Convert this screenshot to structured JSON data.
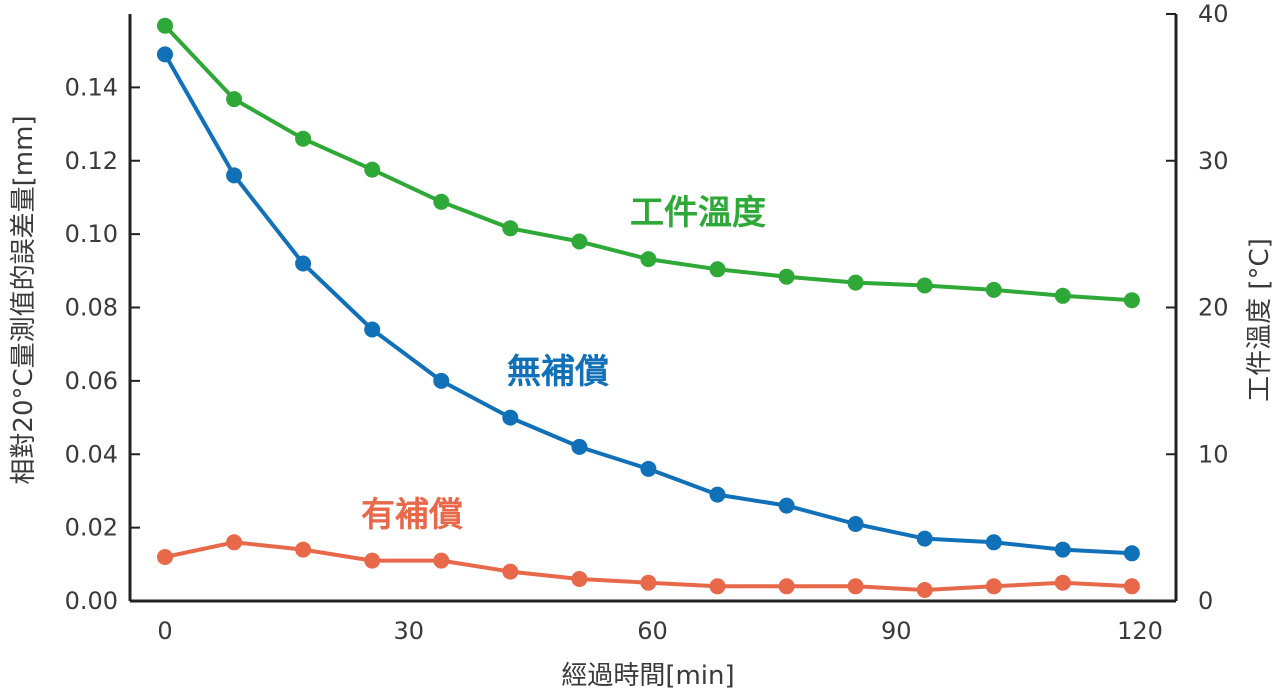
{
  "chart_data": {
    "type": "line",
    "xlabel": "經過時間[min]",
    "ylabel_left": "相對20°C量測值的誤差量[mm]",
    "ylabel_right": "工件溫度 [°C]",
    "xlim": [
      0,
      120
    ],
    "ylim_left": [
      0,
      0.16
    ],
    "ylim_right": [
      0,
      40
    ],
    "x_ticks": [
      "0",
      "30",
      "60",
      "90",
      "120"
    ],
    "y_ticks_left": [
      "0.00",
      "0.02",
      "0.04",
      "0.06",
      "0.08",
      "0.10",
      "0.12",
      "0.14"
    ],
    "y_ticks_right": [
      "0",
      "10",
      "20",
      "30",
      "40"
    ],
    "grid": false,
    "x": [
      0,
      8.5,
      17,
      25.5,
      34,
      42.5,
      51,
      59.5,
      68,
      76.5,
      85,
      93.5,
      102,
      110.5,
      119
    ],
    "series": [
      {
        "name": "工件溫度",
        "axis": "right",
        "color": "#2ea836",
        "values": [
          39.2,
          34.2,
          31.5,
          29.4,
          27.2,
          25.4,
          24.5,
          23.3,
          22.6,
          22.1,
          21.7,
          21.5,
          21.2,
          20.8,
          20.5
        ]
      },
      {
        "name": "無補償",
        "axis": "left",
        "color": "#1070b8",
        "values": [
          0.149,
          0.116,
          0.092,
          0.074,
          0.06,
          0.05,
          0.042,
          0.036,
          0.029,
          0.026,
          0.021,
          0.017,
          0.016,
          0.014,
          0.013
        ]
      },
      {
        "name": "有補償",
        "axis": "left",
        "color": "#e8684a",
        "values": [
          0.012,
          0.016,
          0.014,
          0.011,
          0.011,
          0.008,
          0.006,
          0.005,
          0.004,
          0.004,
          0.004,
          0.003,
          0.004,
          0.005,
          0.004
        ]
      }
    ]
  }
}
